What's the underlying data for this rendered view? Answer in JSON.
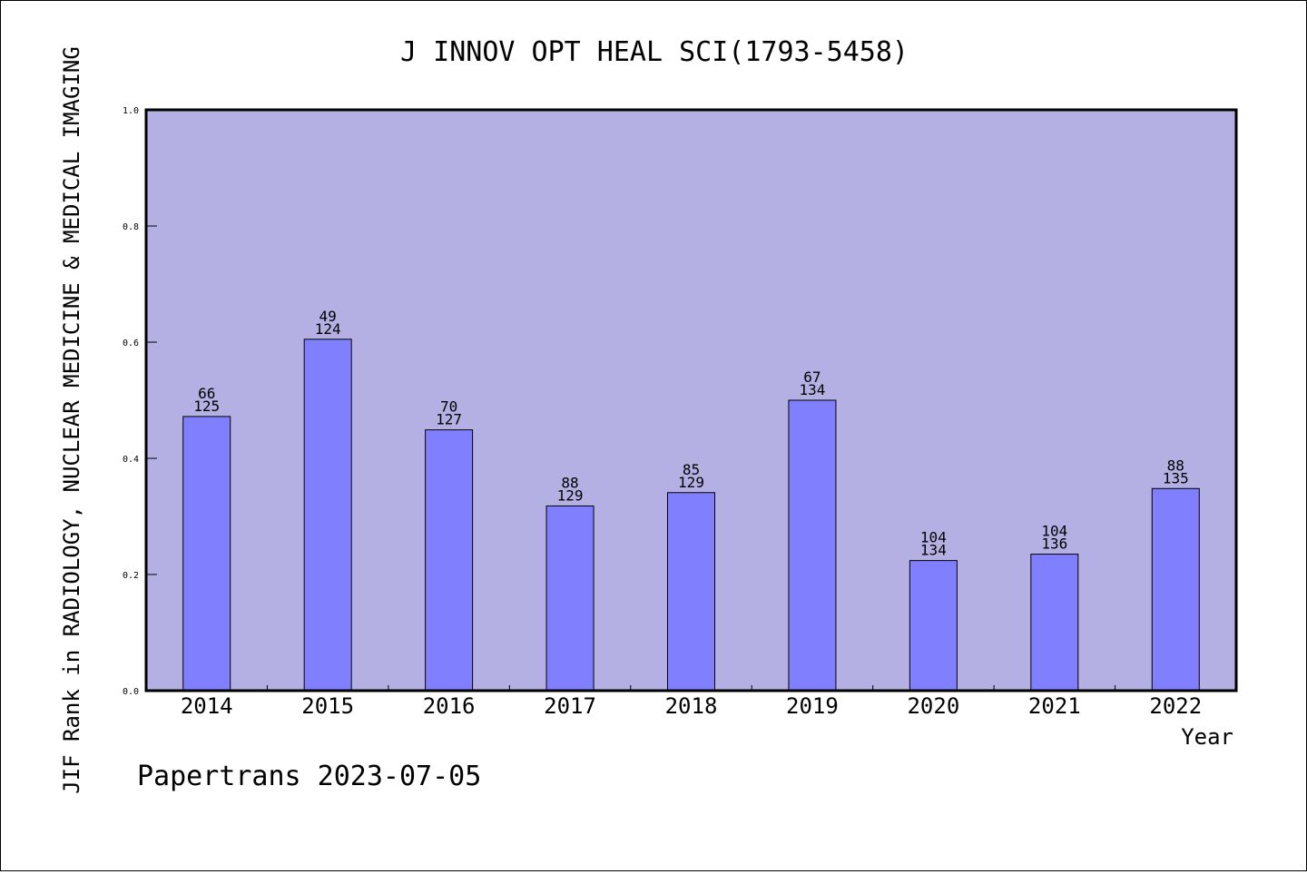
{
  "chart_data": {
    "type": "bar",
    "title": "J INNOV OPT HEAL SCI(1793-5458)",
    "xlabel": "Year",
    "ylabel": "JIF Rank in RADIOLOGY, NUCLEAR MEDICINE & MEDICAL IMAGING",
    "ylim": [
      0,
      1.0
    ],
    "yticks": [
      "0.0",
      "0.2",
      "0.4",
      "0.6",
      "0.8",
      "1.0"
    ],
    "categories": [
      "2014",
      "2015",
      "2016",
      "2017",
      "2018",
      "2019",
      "2020",
      "2021",
      "2022"
    ],
    "values": [
      0.472,
      0.605,
      0.449,
      0.318,
      0.341,
      0.5,
      0.224,
      0.235,
      0.348
    ],
    "ranks": [
      "66",
      "49",
      "70",
      "88",
      "85",
      "67",
      "104",
      "104",
      "88"
    ],
    "totals": [
      "125",
      "124",
      "127",
      "129",
      "129",
      "134",
      "134",
      "136",
      "135"
    ],
    "grid": false,
    "colors": {
      "plot_background": "#b5b0e3",
      "bar": "#8080ff",
      "border": "#000000"
    }
  },
  "footer": "Papertrans 2023-07-05"
}
